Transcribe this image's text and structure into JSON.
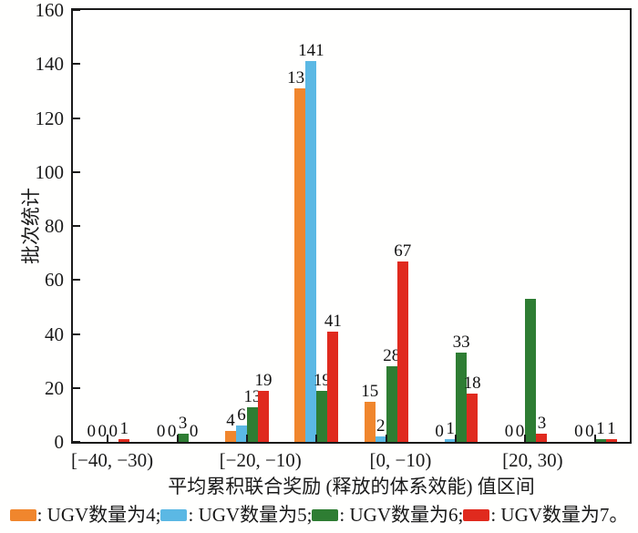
{
  "chart_data": {
    "type": "bar",
    "title": "",
    "ylabel": "批次统计",
    "xlabel": "平均累积联合奖励 (释放的体系效能) 值区间",
    "ylim": [
      0,
      160
    ],
    "yticks": [
      0,
      20,
      40,
      60,
      80,
      100,
      120,
      140,
      160
    ],
    "grid": false,
    "legend_position": "bottom",
    "categories": [
      "[−40, −30)",
      "",
      "[−20, −10)",
      "",
      "[0, −10)",
      "",
      "[20, 30)",
      ""
    ],
    "series": [
      {
        "name": "UGV数量为4",
        "color": "#F0862D",
        "values": [
          0,
          0,
          4,
          131,
          15,
          0,
          0,
          0
        ],
        "labels": [
          "0",
          "0",
          "4",
          "131",
          "15",
          "0",
          "0",
          "0"
        ]
      },
      {
        "name": "UGV数量为5",
        "color": "#5BB8E4",
        "values": [
          0,
          0,
          6,
          141,
          2,
          1,
          0,
          0
        ],
        "labels": [
          "0",
          "0",
          "6",
          "141",
          "2",
          "1",
          "0",
          "0"
        ]
      },
      {
        "name": "UGV数量为6",
        "color": "#2E7D33",
        "values": [
          0,
          3,
          13,
          19,
          28,
          33,
          53,
          1
        ],
        "labels": [
          "0",
          "3",
          "13",
          "19",
          "28",
          "33",
          "",
          "1"
        ]
      },
      {
        "name": "UGV数量为7",
        "color": "#E02A1E",
        "values": [
          1,
          0,
          19,
          41,
          67,
          18,
          3,
          1
        ],
        "labels": [
          "1",
          "0",
          "19",
          "41",
          "67",
          "18",
          "3",
          "1"
        ]
      }
    ],
    "legend": [
      {
        "label": ": UGV数量为4;",
        "color": "#F0862D"
      },
      {
        "label": ": UGV数量为5;",
        "color": "#5BB8E4"
      },
      {
        "label": ": UGV数量为6;",
        "color": "#2E7D33"
      },
      {
        "label": ": UGV数量为7。",
        "color": "#E02A1E"
      }
    ]
  }
}
